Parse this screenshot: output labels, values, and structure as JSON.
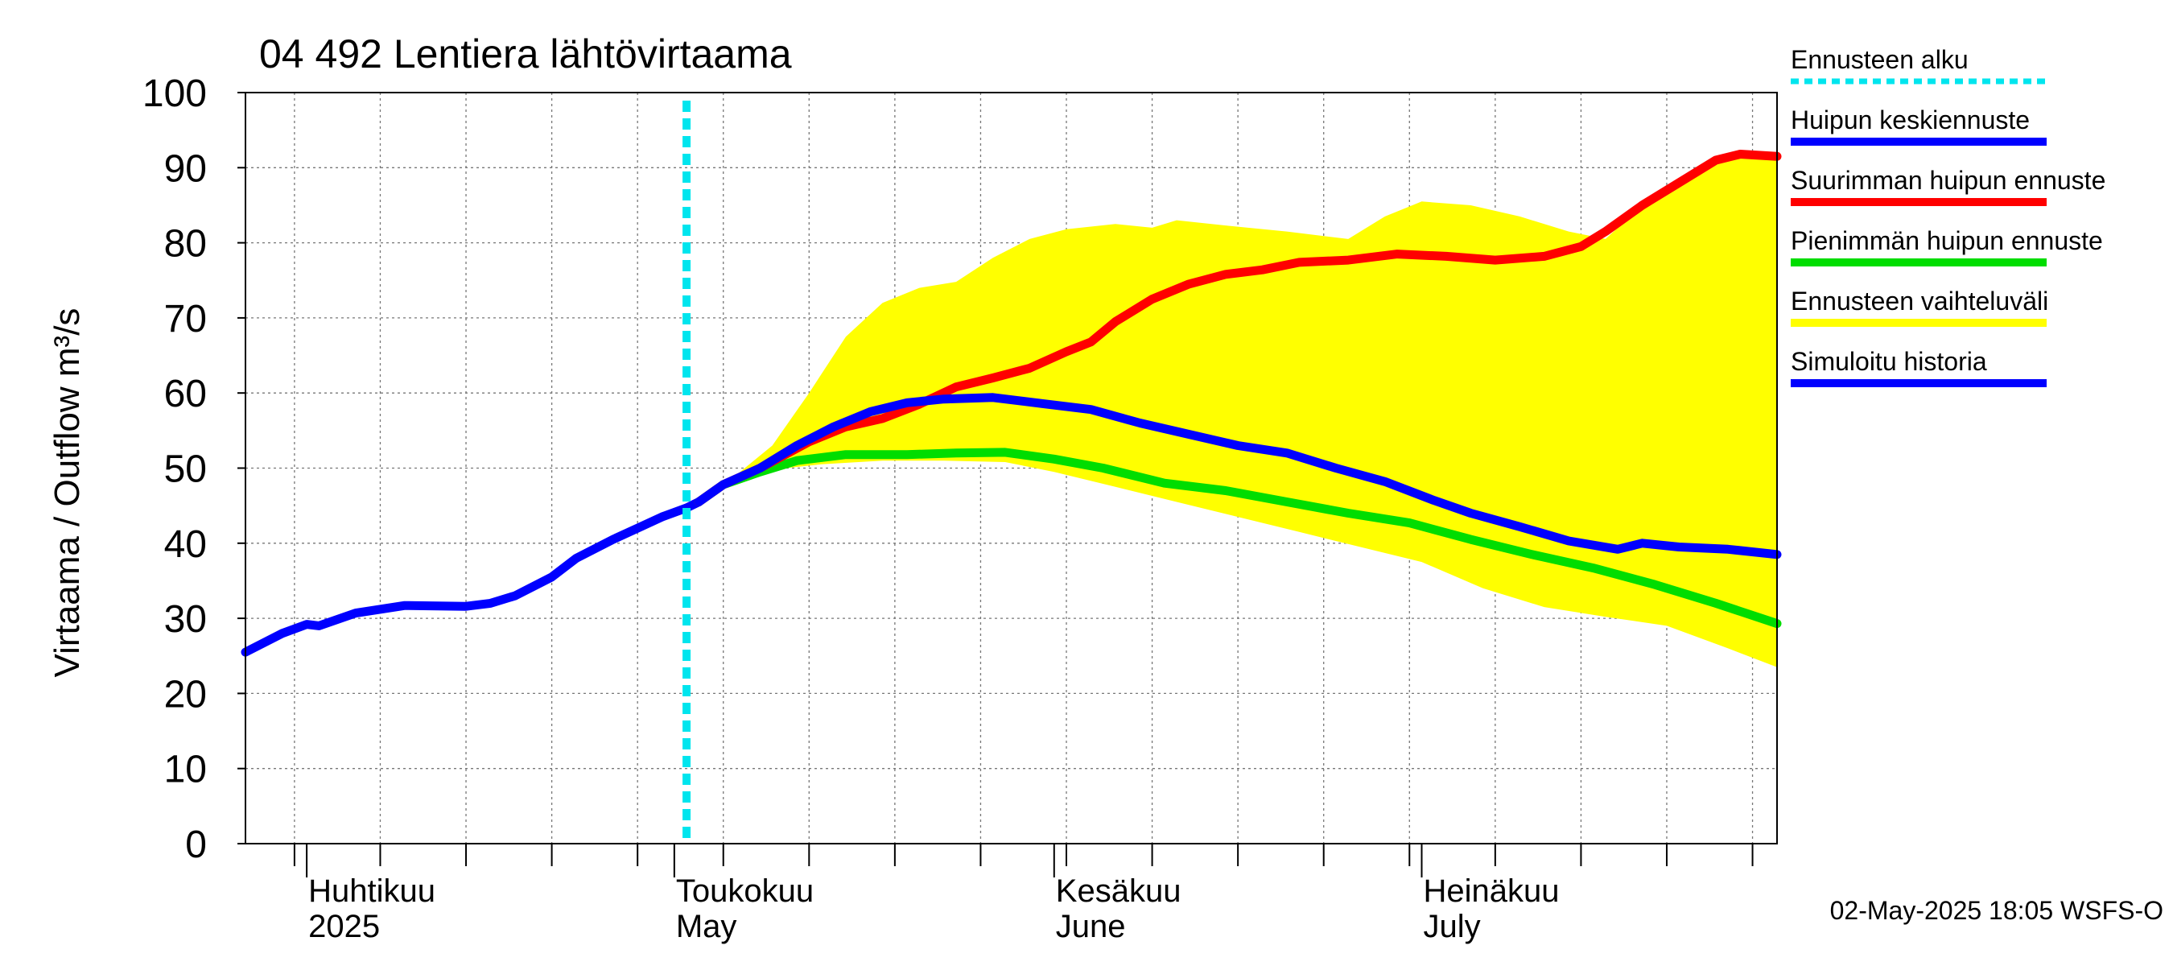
{
  "chart_data": {
    "type": "line",
    "title": "04 492 Lentiera lähtövirtaama",
    "ylabel": "Virtaama / Outflow    m³/s",
    "ylim": [
      0,
      100
    ],
    "yticks": [
      0,
      10,
      20,
      30,
      40,
      50,
      60,
      70,
      80,
      90,
      100
    ],
    "xlim": [
      "2025-03-27",
      "2025-07-30"
    ],
    "month_labels": [
      {
        "date": "2025-04-01",
        "line1": "Huhtikuu",
        "line2": "2025"
      },
      {
        "date": "2025-05-01",
        "line1": "Toukokuu",
        "line2": "May"
      },
      {
        "date": "2025-06-01",
        "line1": "Kesäkuu",
        "line2": "June"
      },
      {
        "date": "2025-07-01",
        "line1": "Heinäkuu",
        "line2": "July"
      }
    ],
    "forecast_start": "2025-05-02",
    "footer": "02-May-2025 18:05 WSFS-O",
    "legend": [
      {
        "key": "forecast_start",
        "label": "Ennusteen alku",
        "color": "#00e5ee",
        "style": "dotted"
      },
      {
        "key": "mean_peak",
        "label": "Huipun keskiennuste",
        "color": "#0000ff",
        "style": "solid"
      },
      {
        "key": "max_peak",
        "label": "Suurimman huipun ennuste",
        "color": "#ff0000",
        "style": "solid"
      },
      {
        "key": "min_peak",
        "label": "Pienimmän huipun ennuste",
        "color": "#00dd00",
        "style": "solid"
      },
      {
        "key": "range",
        "label": "Ennusteen vaihteluväli",
        "color": "#ffff00",
        "style": "band"
      },
      {
        "key": "history",
        "label": "Simuloitu historia",
        "color": "#0000ff",
        "style": "solid"
      }
    ],
    "series": [
      {
        "key": "history",
        "name": "Simuloitu historia",
        "color": "#0000ff",
        "points": [
          [
            "2025-03-27",
            25.5
          ],
          [
            "2025-03-30",
            28.0
          ],
          [
            "2025-04-01",
            29.2
          ],
          [
            "2025-04-02",
            29.0
          ],
          [
            "2025-04-05",
            30.7
          ],
          [
            "2025-04-09",
            31.7
          ],
          [
            "2025-04-14",
            31.6
          ],
          [
            "2025-04-16",
            32.0
          ],
          [
            "2025-04-18",
            33.0
          ],
          [
            "2025-04-21",
            35.5
          ],
          [
            "2025-04-23",
            38.0
          ],
          [
            "2025-04-26",
            40.5
          ],
          [
            "2025-04-28",
            42.0
          ],
          [
            "2025-04-30",
            43.5
          ],
          [
            "2025-05-02",
            44.7
          ],
          [
            "2025-05-03",
            45.5
          ]
        ]
      },
      {
        "key": "min_peak",
        "name": "Pienimmän huipun ennuste",
        "color": "#00dd00",
        "points": [
          [
            "2025-05-03",
            45.5
          ],
          [
            "2025-05-05",
            47.8
          ],
          [
            "2025-05-08",
            49.5
          ],
          [
            "2025-05-11",
            51.0
          ],
          [
            "2025-05-15",
            51.8
          ],
          [
            "2025-05-20",
            51.8
          ],
          [
            "2025-05-24",
            52.0
          ],
          [
            "2025-05-28",
            52.1
          ],
          [
            "2025-06-01",
            51.2
          ],
          [
            "2025-06-05",
            50.0
          ],
          [
            "2025-06-10",
            48.0
          ],
          [
            "2025-06-15",
            47.0
          ],
          [
            "2025-06-20",
            45.5
          ],
          [
            "2025-06-25",
            44.0
          ],
          [
            "2025-06-30",
            42.7
          ],
          [
            "2025-07-05",
            40.5
          ],
          [
            "2025-07-10",
            38.5
          ],
          [
            "2025-07-15",
            36.7
          ],
          [
            "2025-07-20",
            34.5
          ],
          [
            "2025-07-25",
            32.0
          ],
          [
            "2025-07-30",
            29.3
          ]
        ]
      },
      {
        "key": "max_peak",
        "name": "Suurimman huipun ennuste",
        "color": "#ff0000",
        "points": [
          [
            "2025-05-03",
            45.5
          ],
          [
            "2025-05-05",
            47.8
          ],
          [
            "2025-05-08",
            50.0
          ],
          [
            "2025-05-12",
            53.5
          ],
          [
            "2025-05-15",
            55.5
          ],
          [
            "2025-05-18",
            56.6
          ],
          [
            "2025-05-21",
            58.5
          ],
          [
            "2025-05-24",
            60.8
          ],
          [
            "2025-05-27",
            62.0
          ],
          [
            "2025-05-30",
            63.3
          ],
          [
            "2025-06-02",
            65.5
          ],
          [
            "2025-06-04",
            66.8
          ],
          [
            "2025-06-06",
            69.5
          ],
          [
            "2025-06-09",
            72.5
          ],
          [
            "2025-06-12",
            74.5
          ],
          [
            "2025-06-15",
            75.8
          ],
          [
            "2025-06-18",
            76.4
          ],
          [
            "2025-06-21",
            77.4
          ],
          [
            "2025-06-25",
            77.7
          ],
          [
            "2025-06-29",
            78.5
          ],
          [
            "2025-07-03",
            78.2
          ],
          [
            "2025-07-07",
            77.7
          ],
          [
            "2025-07-11",
            78.2
          ],
          [
            "2025-07-14",
            79.5
          ],
          [
            "2025-07-16",
            81.5
          ],
          [
            "2025-07-19",
            85.0
          ],
          [
            "2025-07-22",
            88.0
          ],
          [
            "2025-07-25",
            91.0
          ],
          [
            "2025-07-27",
            91.8
          ],
          [
            "2025-07-30",
            91.5
          ]
        ]
      },
      {
        "key": "mean_peak",
        "name": "Huipun keskiennuste",
        "color": "#0000ff",
        "points": [
          [
            "2025-05-03",
            45.5
          ],
          [
            "2025-05-05",
            47.8
          ],
          [
            "2025-05-08",
            50.0
          ],
          [
            "2025-05-11",
            53.0
          ],
          [
            "2025-05-14",
            55.5
          ],
          [
            "2025-05-17",
            57.5
          ],
          [
            "2025-05-20",
            58.7
          ],
          [
            "2025-05-23",
            59.2
          ],
          [
            "2025-05-27",
            59.4
          ],
          [
            "2025-05-31",
            58.6
          ],
          [
            "2025-06-04",
            57.8
          ],
          [
            "2025-06-08",
            56.0
          ],
          [
            "2025-06-12",
            54.5
          ],
          [
            "2025-06-16",
            53.0
          ],
          [
            "2025-06-20",
            52.0
          ],
          [
            "2025-06-24",
            50.0
          ],
          [
            "2025-06-28",
            48.2
          ],
          [
            "2025-07-02",
            45.7
          ],
          [
            "2025-07-05",
            44.0
          ],
          [
            "2025-07-09",
            42.2
          ],
          [
            "2025-07-13",
            40.3
          ],
          [
            "2025-07-17",
            39.2
          ],
          [
            "2025-07-19",
            40.0
          ],
          [
            "2025-07-22",
            39.5
          ],
          [
            "2025-07-26",
            39.2
          ],
          [
            "2025-07-30",
            38.5
          ]
        ]
      }
    ],
    "range_band": {
      "key": "range",
      "name": "Ennusteen vaihteluväli",
      "color": "#ffff00",
      "upper": [
        [
          "2025-05-03",
          45.5
        ],
        [
          "2025-05-06",
          49.0
        ],
        [
          "2025-05-09",
          53.0
        ],
        [
          "2025-05-12",
          60.0
        ],
        [
          "2025-05-15",
          67.5
        ],
        [
          "2025-05-18",
          72.0
        ],
        [
          "2025-05-21",
          74.0
        ],
        [
          "2025-05-24",
          74.8
        ],
        [
          "2025-05-27",
          78.0
        ],
        [
          "2025-05-30",
          80.5
        ],
        [
          "2025-06-02",
          81.8
        ],
        [
          "2025-06-06",
          82.5
        ],
        [
          "2025-06-09",
          82.0
        ],
        [
          "2025-06-11",
          83.0
        ],
        [
          "2025-06-15",
          82.3
        ],
        [
          "2025-06-20",
          81.5
        ],
        [
          "2025-06-25",
          80.5
        ],
        [
          "2025-06-28",
          83.5
        ],
        [
          "2025-07-01",
          85.5
        ],
        [
          "2025-07-05",
          85.0
        ],
        [
          "2025-07-09",
          83.5
        ],
        [
          "2025-07-13",
          81.5
        ],
        [
          "2025-07-16",
          80.5
        ],
        [
          "2025-07-19",
          85.0
        ],
        [
          "2025-07-22",
          88.0
        ],
        [
          "2025-07-25",
          91.0
        ],
        [
          "2025-07-27",
          92.0
        ],
        [
          "2025-07-30",
          92.0
        ]
      ],
      "lower": [
        [
          "2025-05-03",
          45.5
        ],
        [
          "2025-05-06",
          48.0
        ],
        [
          "2025-05-09",
          49.8
        ],
        [
          "2025-05-13",
          50.5
        ],
        [
          "2025-05-18",
          51.0
        ],
        [
          "2025-05-23",
          51.0
        ],
        [
          "2025-05-28",
          50.8
        ],
        [
          "2025-06-01",
          49.5
        ],
        [
          "2025-06-06",
          47.5
        ],
        [
          "2025-06-11",
          45.5
        ],
        [
          "2025-06-16",
          43.5
        ],
        [
          "2025-06-21",
          41.5
        ],
        [
          "2025-06-26",
          39.5
        ],
        [
          "2025-07-01",
          37.5
        ],
        [
          "2025-07-06",
          34.0
        ],
        [
          "2025-07-11",
          31.5
        ],
        [
          "2025-07-16",
          30.2
        ],
        [
          "2025-07-21",
          29.0
        ],
        [
          "2025-07-26",
          26.0
        ],
        [
          "2025-07-30",
          23.5
        ]
      ]
    }
  }
}
